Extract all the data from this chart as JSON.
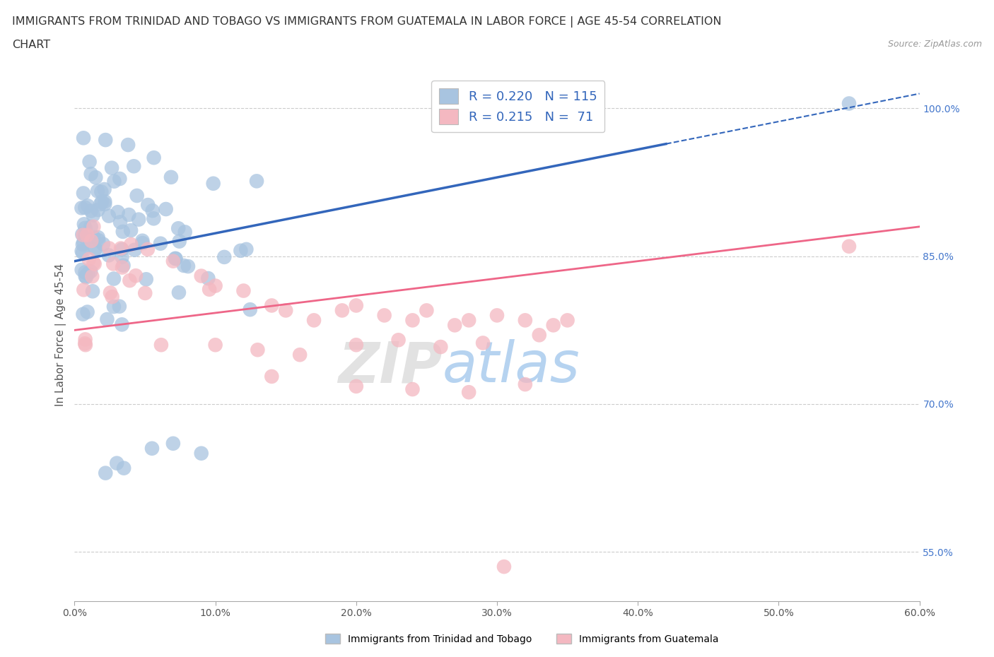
{
  "title_line1": "IMMIGRANTS FROM TRINIDAD AND TOBAGO VS IMMIGRANTS FROM GUATEMALA IN LABOR FORCE | AGE 45-54 CORRELATION",
  "title_line2": "CHART",
  "source": "Source: ZipAtlas.com",
  "ylabel": "In Labor Force | Age 45-54",
  "xlim": [
    0.0,
    0.6
  ],
  "ylim": [
    0.5,
    1.04
  ],
  "xtick_labels": [
    "0.0%",
    "10.0%",
    "20.0%",
    "30.0%",
    "40.0%",
    "50.0%",
    "60.0%"
  ],
  "xtick_vals": [
    0.0,
    0.1,
    0.2,
    0.3,
    0.4,
    0.5,
    0.6
  ],
  "ytick_labels": [
    "55.0%",
    "70.0%",
    "85.0%",
    "100.0%"
  ],
  "ytick_vals": [
    0.55,
    0.7,
    0.85,
    1.0
  ],
  "R_blue": 0.22,
  "N_blue": 115,
  "R_pink": 0.215,
  "N_pink": 71,
  "blue_color": "#A8C4E0",
  "pink_color": "#F4B8C1",
  "blue_line_color": "#3366BB",
  "pink_line_color": "#EE6688",
  "trend_blue_x0": 0.0,
  "trend_blue_y0": 0.845,
  "trend_blue_x1": 0.6,
  "trend_blue_y1": 1.015,
  "trend_blue_solid_end": 0.42,
  "trend_pink_x0": 0.0,
  "trend_pink_y0": 0.775,
  "trend_pink_x1": 0.6,
  "trend_pink_y1": 0.88,
  "watermark_zip": "ZIP",
  "watermark_atlas": "atlas",
  "watermark_color_zip": "#DDDDDD",
  "watermark_color_atlas": "#AACCEE",
  "legend_label_blue": "Immigrants from Trinidad and Tobago",
  "legend_label_pink": "Immigrants from Guatemala"
}
